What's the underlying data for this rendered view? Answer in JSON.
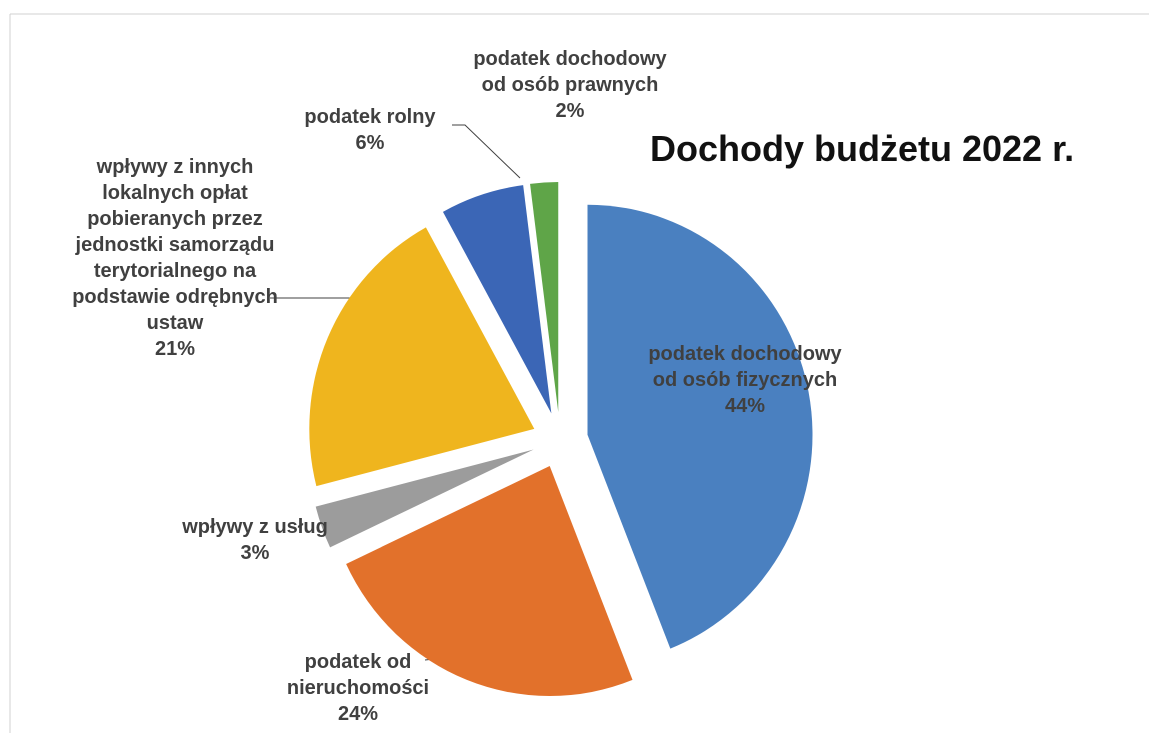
{
  "chart_data": {
    "type": "pie",
    "title": "Dochody budżetu 2022 r.",
    "categories": [
      "podatek dochodowy od osób fizycznych",
      "podatek od nieruchomości",
      "wpływy z usług",
      "wpływy z innych lokalnych opłat pobieranych przez jednostki samorządu terytorialnego na podstawie odrębnych ustaw",
      "podatek rolny",
      "podatek dochodowy od osób prawnych"
    ],
    "values": [
      44,
      24,
      3,
      21,
      6,
      2
    ],
    "value_labels": [
      "44%",
      "24%",
      "3%",
      "21%",
      "6%",
      "2%"
    ],
    "colors": [
      "#4a80c0",
      "#e2712b",
      "#9c9c9c",
      "#efb51e",
      "#3b66b6",
      "#5fa548"
    ]
  }
}
